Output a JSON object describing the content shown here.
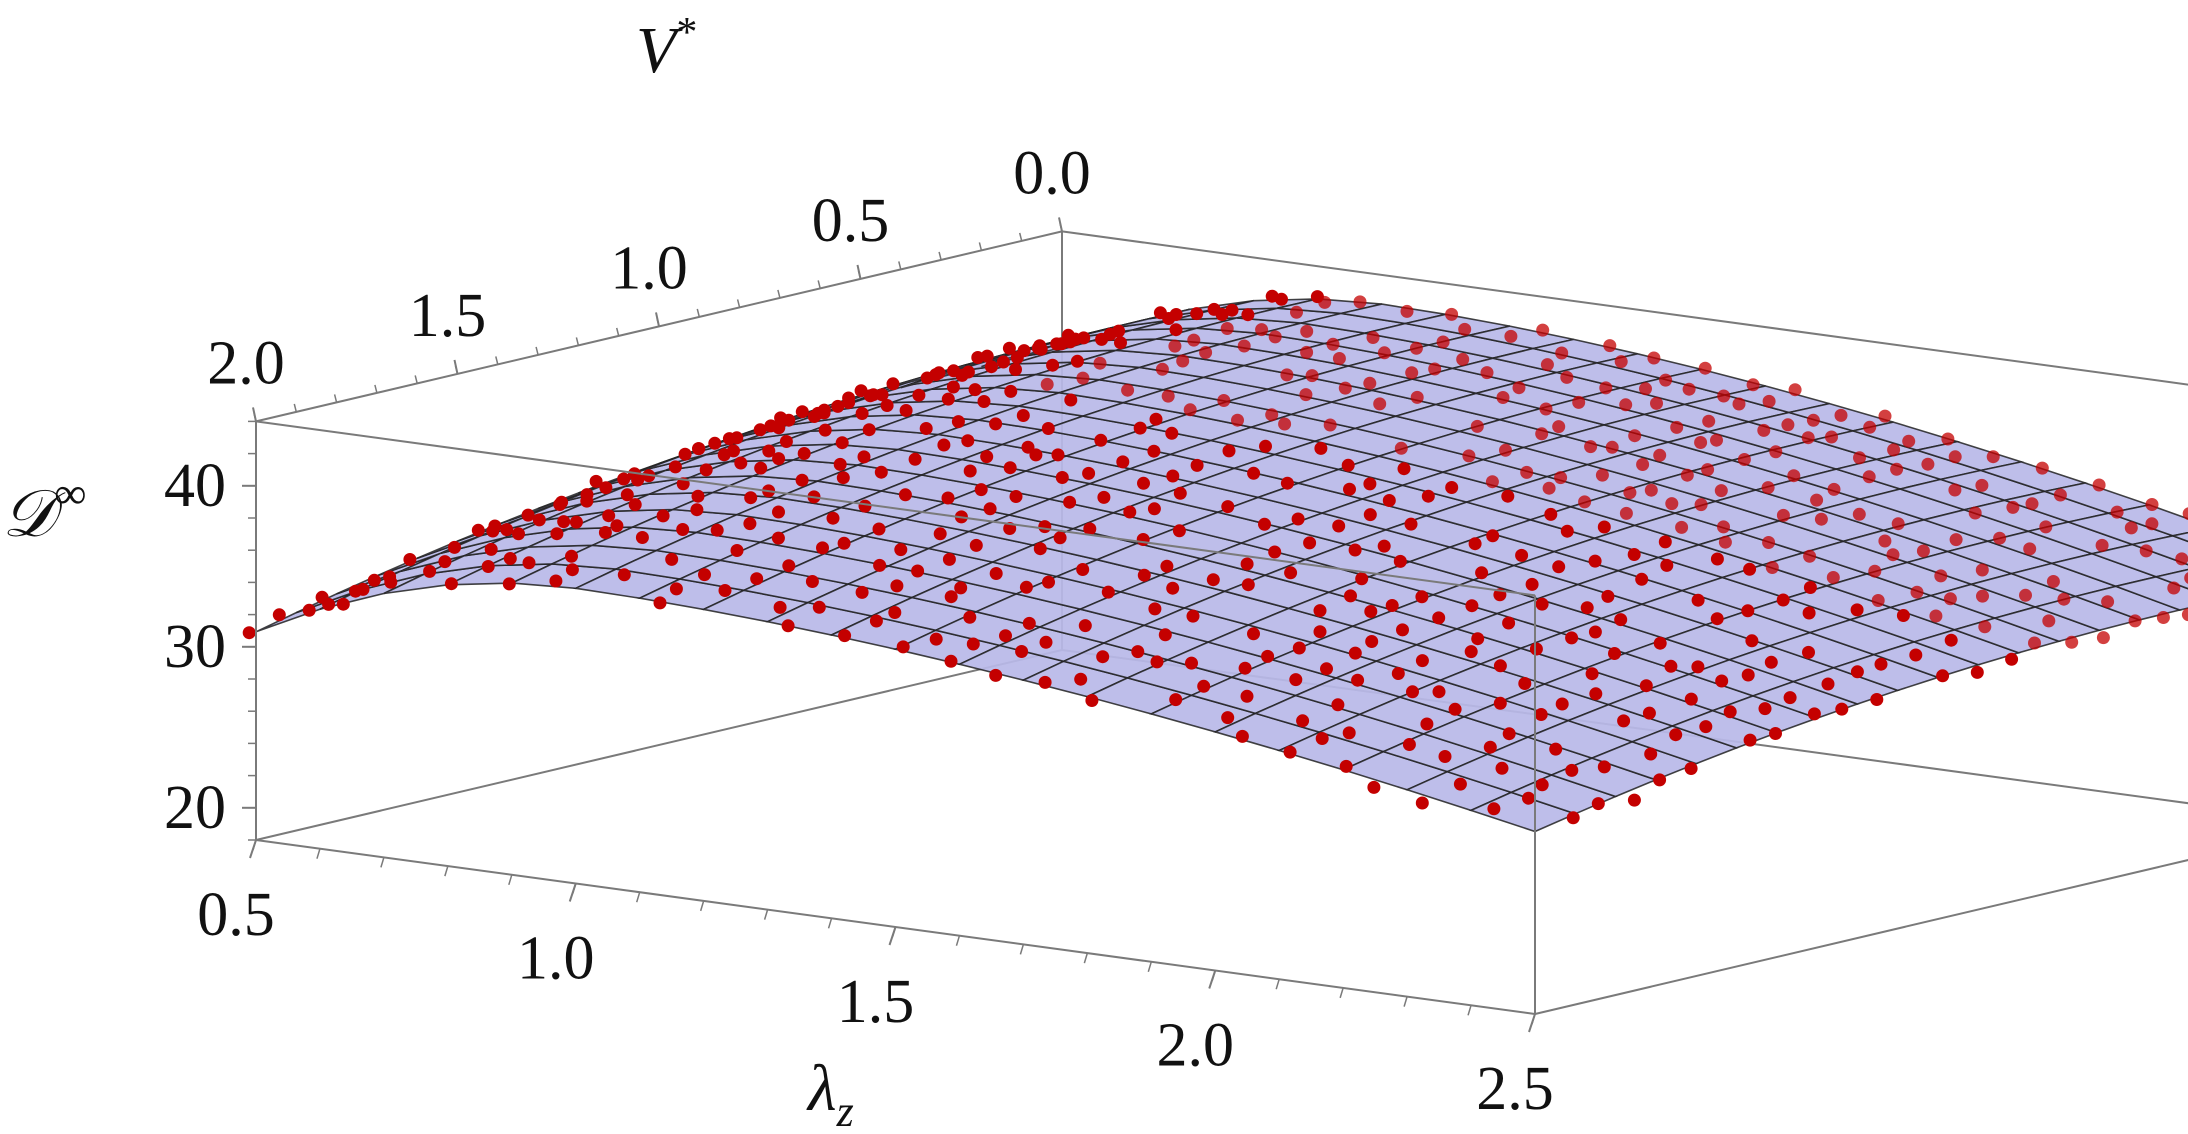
{
  "chart_data": {
    "type": "scatter",
    "subtype": "3d-surface-with-points",
    "title": "",
    "x_axis": {
      "label": "λ",
      "label_subscript": "z",
      "ticks": [
        "0.5",
        "1.0",
        "1.5",
        "2.0",
        "2.5"
      ],
      "range": [
        0.5,
        2.5
      ]
    },
    "y_axis": {
      "label": "V",
      "label_superscript": "*",
      "ticks": [
        "0.0",
        "0.5",
        "1.0",
        "1.5",
        "2.0"
      ],
      "range": [
        0.0,
        2.0
      ]
    },
    "z_axis": {
      "label": "𝒟",
      "label_superscript": "∞",
      "ticks": [
        "20",
        "30",
        "40"
      ],
      "range": [
        18,
        44
      ]
    },
    "surface": {
      "description": "Smooth saddle-like surface peaking near λz≈1.0, V*≈0",
      "color": "#b9b9e8",
      "mesh_color": "#222222",
      "mesh_lines": 20,
      "peak_value": 42,
      "low_value_lambda_2_5": 22
    },
    "points": {
      "color": "#c40000",
      "count_approx": 600
    },
    "colors": {
      "surface": "#b9b9e8",
      "points": "#c40000",
      "box": "#7a7a7a"
    }
  }
}
